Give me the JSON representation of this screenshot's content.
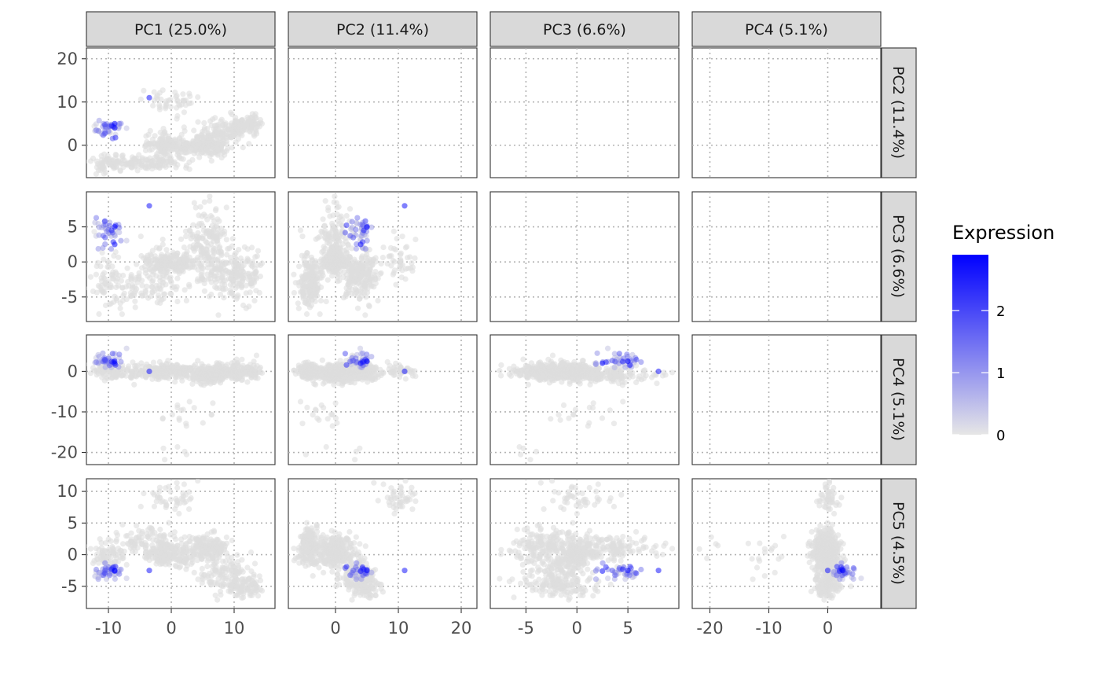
{
  "chart_data": {
    "type": "scatter",
    "layout": "pairs-matrix (lower triangle)",
    "column_strips": [
      "PC1 (25.0%)",
      "PC2 (11.4%)",
      "PC3 (6.6%)",
      "PC4 (5.1%)"
    ],
    "row_strips": [
      "PC2 (11.4%)",
      "PC3 (6.6%)",
      "PC4 (5.1%)",
      "PC5 (4.5%)"
    ],
    "x_axes": [
      {
        "component": "PC1",
        "range": [
          -13.5,
          16.5
        ],
        "ticks": [
          -10,
          0,
          10
        ]
      },
      {
        "component": "PC2",
        "range": [
          -7.5,
          22.5
        ],
        "ticks": [
          0,
          10,
          20
        ]
      },
      {
        "component": "PC3",
        "range": [
          -8.5,
          10
        ],
        "ticks": [
          -5,
          0,
          5
        ]
      },
      {
        "component": "PC4",
        "range": [
          -23,
          9
        ],
        "ticks": [
          -20,
          -10,
          0
        ]
      }
    ],
    "y_axes": [
      {
        "component": "PC2",
        "range": [
          -7.5,
          22.5
        ],
        "ticks": [
          0,
          10,
          20
        ]
      },
      {
        "component": "PC3",
        "range": [
          -8.5,
          10
        ],
        "ticks": [
          -5,
          0,
          5
        ]
      },
      {
        "component": "PC4",
        "range": [
          -23,
          9
        ],
        "ticks": [
          -20,
          -10,
          0
        ]
      },
      {
        "component": "PC5",
        "range": [
          -8.5,
          12
        ],
        "ticks": [
          -5,
          0,
          5,
          10
        ]
      }
    ],
    "grid": "dotted major gridlines",
    "legend": {
      "title": "Expression",
      "position": "right",
      "scale": "continuous",
      "ticks": [
        0,
        1,
        2
      ],
      "range": [
        0,
        2.9
      ],
      "low_color": "#e6e6e6",
      "high_color": "#0000ff"
    },
    "point_colors": {
      "zero_expression": "#dddddd",
      "high_expression": "#0000ff"
    },
    "clusters": [
      {
        "pcs": [
          0,
          0,
          0,
          0,
          0
        ],
        "sd": [
          2.2,
          1.2,
          0.6,
          0.9,
          0.9
        ],
        "n": 160,
        "expr": 0
      },
      {
        "pcs": [
          6,
          0,
          3,
          -1,
          1
        ],
        "sd": [
          1.5,
          1.2,
          2.5,
          1.0,
          1.0
        ],
        "n": 150,
        "expr": 0
      },
      {
        "pcs": [
          9,
          3,
          -2,
          0,
          -3
        ],
        "sd": [
          2.0,
          1.5,
          1.5,
          1.2,
          1.5
        ],
        "n": 120,
        "expr": 0
      },
      {
        "pcs": [
          12,
          5,
          -2,
          0,
          -5
        ],
        "sd": [
          1.5,
          1.0,
          2.0,
          1.0,
          1.0
        ],
        "n": 80,
        "expr": 0
      },
      {
        "pcs": [
          -4,
          -4,
          -3,
          0,
          2
        ],
        "sd": [
          2.5,
          0.8,
          1.5,
          1.0,
          1.0
        ],
        "n": 110,
        "expr": 0
      },
      {
        "pcs": [
          -10,
          -4,
          -3,
          0,
          0
        ],
        "sd": [
          1.5,
          1.0,
          2.0,
          1.0,
          1.0
        ],
        "n": 60,
        "expr": 0
      },
      {
        "pcs": [
          0,
          10,
          0,
          0,
          9
        ],
        "sd": [
          2.0,
          1.5,
          2.0,
          1.0,
          1.0
        ],
        "n": 45,
        "expr": 0
      },
      {
        "pcs": [
          2,
          -2,
          0,
          -10,
          0
        ],
        "sd": [
          3.0,
          2.0,
          2.0,
          3.0,
          2.0
        ],
        "n": 18,
        "expr": 0
      },
      {
        "pcs": [
          0,
          2,
          -4,
          -20,
          1
        ],
        "sd": [
          2.0,
          3.0,
          2.0,
          1.0,
          1.0
        ],
        "n": 5,
        "expr": 0
      },
      {
        "pcs": [
          -10,
          4,
          4,
          3,
          -2.5
        ],
        "sd": [
          1.0,
          1.0,
          1.2,
          1.2,
          0.7
        ],
        "n": 40,
        "expr": 1
      }
    ],
    "highlight_points": [
      {
        "pcs": [
          -3.5,
          11,
          8,
          0,
          -2.5
        ],
        "expr": 2.6
      },
      {
        "pcs": [
          -9,
          5,
          5,
          2.5,
          -2.5
        ],
        "expr": 2.9
      },
      {
        "pcs": [
          -9,
          4,
          2.5,
          2,
          -2.6
        ],
        "expr": 2.7
      },
      {
        "pcs": [
          -9.5,
          4.5,
          4.5,
          2.4,
          -2.3
        ],
        "expr": 2.4
      }
    ]
  }
}
